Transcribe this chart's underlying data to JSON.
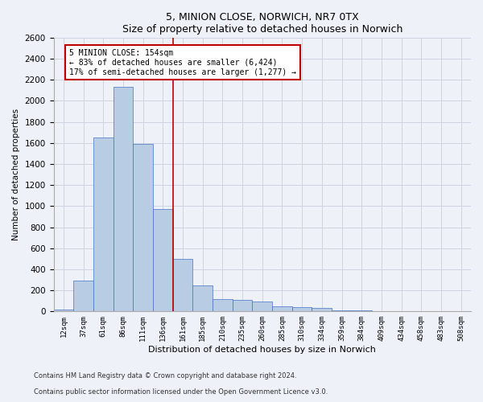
{
  "title1": "5, MINION CLOSE, NORWICH, NR7 0TX",
  "title2": "Size of property relative to detached houses in Norwich",
  "xlabel": "Distribution of detached houses by size in Norwich",
  "ylabel": "Number of detached properties",
  "categories": [
    "12sqm",
    "37sqm",
    "61sqm",
    "86sqm",
    "111sqm",
    "136sqm",
    "161sqm",
    "185sqm",
    "210sqm",
    "235sqm",
    "260sqm",
    "285sqm",
    "310sqm",
    "334sqm",
    "359sqm",
    "384sqm",
    "409sqm",
    "434sqm",
    "458sqm",
    "483sqm",
    "508sqm"
  ],
  "values": [
    20,
    290,
    1650,
    2130,
    1590,
    975,
    500,
    245,
    120,
    110,
    95,
    50,
    40,
    30,
    10,
    10,
    6,
    5,
    5,
    5,
    5
  ],
  "bar_color": "#b8cce4",
  "bar_edge_color": "#4472c4",
  "vline_color": "#c00000",
  "annotation_line1": "5 MINION CLOSE: 154sqm",
  "annotation_line2": "← 83% of detached houses are smaller (6,424)",
  "annotation_line3": "17% of semi-detached houses are larger (1,277) →",
  "annotation_box_color": "#ffffff",
  "annotation_box_edge": "#c00000",
  "ylim": [
    0,
    2600
  ],
  "yticks": [
    0,
    200,
    400,
    600,
    800,
    1000,
    1200,
    1400,
    1600,
    1800,
    2000,
    2200,
    2400,
    2600
  ],
  "grid_color": "#cdd5e0",
  "footnote1": "Contains HM Land Registry data © Crown copyright and database right 2024.",
  "footnote2": "Contains public sector information licensed under the Open Government Licence v3.0.",
  "bg_color": "#eef2f8"
}
